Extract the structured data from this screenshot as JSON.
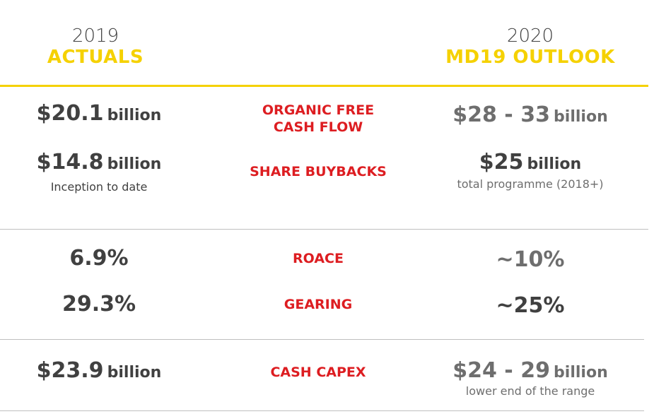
{
  "header": {
    "left": {
      "year": "2019",
      "title": "ACTUALS"
    },
    "right": {
      "year": "2020",
      "title": "MD19 OUTLOOK"
    }
  },
  "colors": {
    "accent_yellow": "#f5d100",
    "label_red": "#dd1d21",
    "text_dark": "#404040",
    "text_grey": "#6e6e6e"
  },
  "rows": {
    "ofcf": {
      "actual_value": "$20.1",
      "actual_unit": "billion",
      "label_line1": "ORGANIC FREE",
      "label_line2": "CASH FLOW",
      "outlook_value": "$28 - 33",
      "outlook_unit": "billion"
    },
    "buybacks": {
      "actual_value": "$14.8",
      "actual_unit": "billion",
      "actual_note": "Inception to date",
      "label": "SHARE BUYBACKS",
      "outlook_value": "$25",
      "outlook_unit": "billion",
      "outlook_note": "total programme (2018+)"
    },
    "roace": {
      "actual_value": "6.9%",
      "label": "ROACE",
      "outlook_value": "~10%"
    },
    "gearing": {
      "actual_value": "29.3%",
      "label": "GEARING",
      "outlook_value": "~25%"
    },
    "capex": {
      "actual_value": "$23.9",
      "actual_unit": "billion",
      "label": "CASH CAPEX",
      "outlook_value": "$24 - 29",
      "outlook_unit": "billion",
      "outlook_note": "lower end of the range"
    }
  }
}
